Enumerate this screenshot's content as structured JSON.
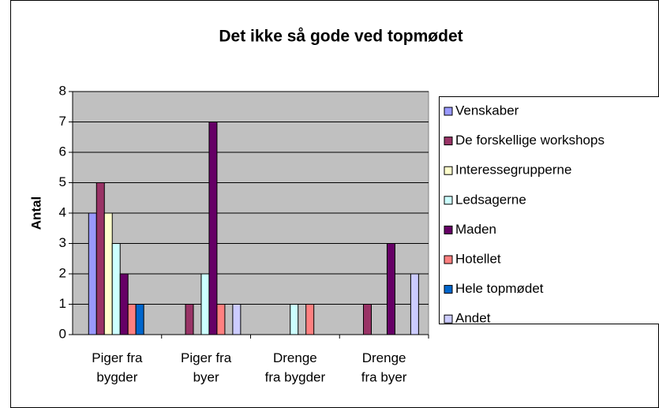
{
  "chart_data": {
    "type": "bar",
    "title": "Det ikke så gode ved topmødet",
    "y_label": "Antal",
    "categories": [
      "Piger fra\nbygder",
      "Piger fra\nbyer",
      "Drenge\nfra bygder",
      "Drenge\nfra byer"
    ],
    "series": [
      {
        "name": "Venskaber",
        "color": "#9999ff",
        "values": [
          4,
          0,
          0,
          0
        ]
      },
      {
        "name": "De forskellige workshops",
        "color": "#993366",
        "values": [
          5,
          1,
          0,
          1
        ]
      },
      {
        "name": "Interessegrupperne",
        "color": "#ffffcc",
        "values": [
          4,
          0,
          0,
          0
        ]
      },
      {
        "name": "Ledsagerne",
        "color": "#ccffff",
        "values": [
          3,
          2,
          1,
          0
        ]
      },
      {
        "name": "Maden",
        "color": "#660066",
        "values": [
          2,
          7,
          0,
          3
        ]
      },
      {
        "name": "Hotellet",
        "color": "#ff8080",
        "values": [
          1,
          1,
          1,
          0
        ]
      },
      {
        "name": "Hele topmødet",
        "color": "#0066cc",
        "values": [
          1,
          0,
          0,
          0
        ]
      },
      {
        "name": "Andet",
        "color": "#ccccff",
        "values": [
          0,
          1,
          0,
          2
        ]
      }
    ],
    "ylim": [
      0,
      8
    ],
    "yticks": [
      0,
      1,
      2,
      3,
      4,
      5,
      6,
      7,
      8
    ],
    "grid": true,
    "legend": "right"
  }
}
